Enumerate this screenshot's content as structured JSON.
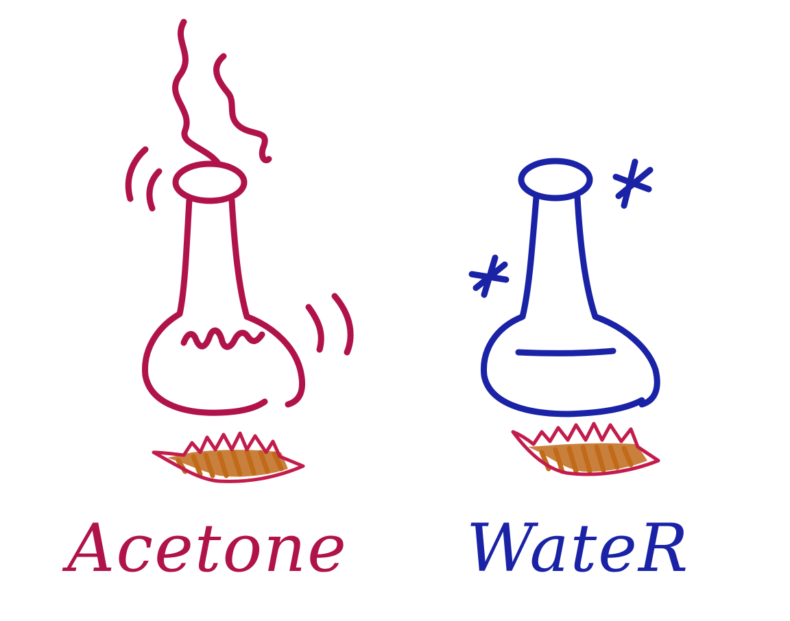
{
  "left_panel": {
    "label": "Acetone",
    "ink_color": "#b0134a",
    "liquid_surface": "wavy",
    "effects": [
      "vapor-wisp",
      "vapor-wisp",
      "vibration-lines",
      "vibration-lines"
    ]
  },
  "right_panel": {
    "label": "WateR",
    "ink_color": "#1a22a6",
    "liquid_surface": "flat",
    "effects": [
      "asterisk",
      "asterisk"
    ]
  },
  "burner": {
    "outline_color": "#c21c4c",
    "fill_color": "#c06a1a"
  }
}
